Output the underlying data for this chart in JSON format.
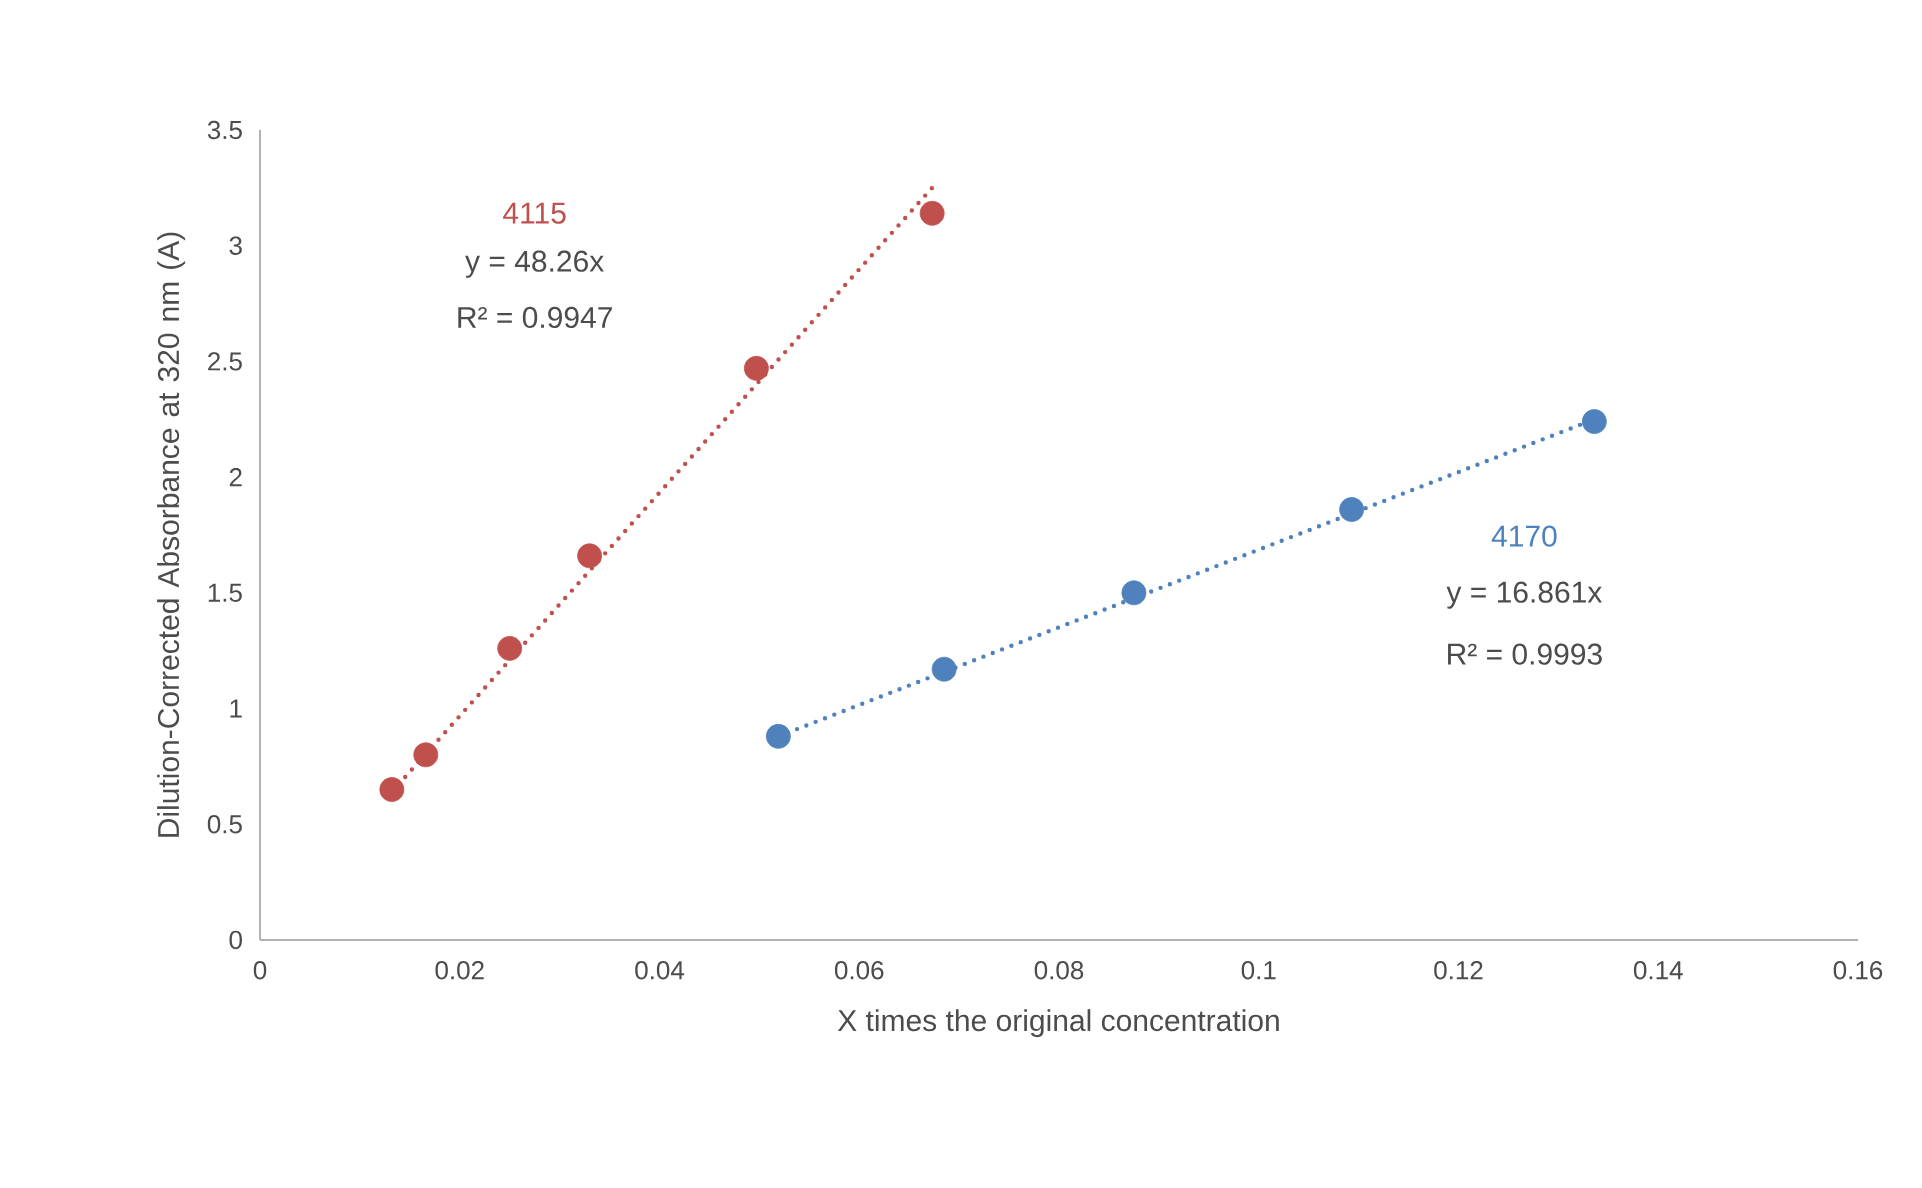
{
  "chart_data": {
    "type": "scatter",
    "xlabel": "X times the original concentration",
    "ylabel": "Dilution-Corrected Absorbance at 320 nm (A)",
    "xlim": [
      0,
      0.16
    ],
    "ylim": [
      0,
      3.5
    ],
    "xticks": [
      0,
      0.02,
      0.04,
      0.06,
      0.08,
      0.1,
      0.12,
      0.14,
      0.16
    ],
    "yticks": [
      0,
      0.5,
      1,
      1.5,
      2,
      2.5,
      3,
      3.5
    ],
    "grid": false,
    "series": [
      {
        "name": "4115",
        "marker": "circle",
        "color": "#c0504d",
        "x": [
          0.0132,
          0.0166,
          0.025,
          0.033,
          0.0497,
          0.0673
        ],
        "values": [
          0.65,
          0.8,
          1.26,
          1.66,
          2.47,
          3.14
        ]
      },
      {
        "type": "line",
        "marker": "none",
        "line_style": "dotted",
        "color": "#c0504d",
        "x": [
          0.0132,
          0.0675
        ],
        "values": [
          0.64,
          3.26
        ]
      },
      {
        "name": "4170",
        "marker": "circle",
        "color": "#4f81bd",
        "x": [
          0.0519,
          0.0685,
          0.0875,
          0.1093,
          0.1336
        ],
        "values": [
          0.88,
          1.17,
          1.5,
          1.86,
          2.24
        ]
      },
      {
        "type": "line",
        "marker": "none",
        "line_style": "dotted",
        "color": "#4f81bd",
        "x": [
          0.0519,
          0.1336
        ],
        "values": [
          0.88,
          2.25
        ]
      }
    ],
    "annotations": [
      "y = 48.26x",
      "R² = 0.9947",
      "y = 16.861x",
      "R² = 0.9993"
    ]
  }
}
